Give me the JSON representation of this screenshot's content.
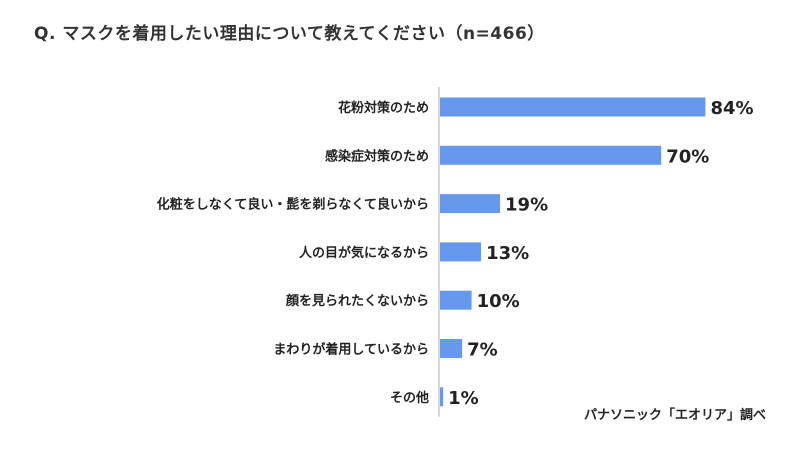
{
  "title": "Q. マスクを着用したい理由について教えてください（n=466）",
  "source": "パナソニック「エオリア」調べ",
  "colors": {
    "bar": "#6699ee",
    "axis": "#b0b0b0",
    "text": "#222222"
  },
  "chart_data": {
    "type": "bar",
    "orientation": "horizontal",
    "categories": [
      "花粉対策のため",
      "感染症対策のため",
      "化粧をしなくて良い・髭を剃らなくて良いから",
      "人の目が気になるから",
      "顔を見られたくないから",
      "まわりが着用しているから",
      "その他"
    ],
    "values": [
      84,
      70,
      19,
      13,
      10,
      7,
      1
    ],
    "value_labels": [
      "84%",
      "70%",
      "19%",
      "13%",
      "10%",
      "7%",
      "1%"
    ],
    "xlim": [
      0,
      100
    ],
    "grid": false
  }
}
